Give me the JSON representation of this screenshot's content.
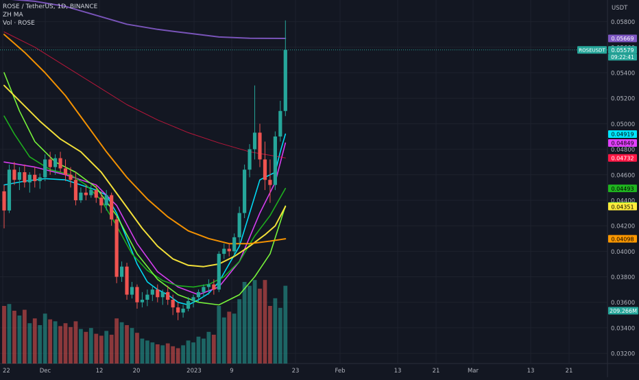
{
  "chart": {
    "title": "ROSE / TetherUS, 1D, BINANCE",
    "indicators": [
      "ZH MA",
      "Vol · ROSE"
    ],
    "price_axis_label": "USDT",
    "symbol_tag": "ROSEUSDT",
    "countdown": "09:22:41",
    "colors": {
      "background": "#131722",
      "grid": "#1e222d",
      "up": "#26a69a",
      "down": "#ef5350"
    }
  },
  "chart_data": {
    "type": "candlestick",
    "x_ticks": [
      "22",
      "Dec",
      "12",
      "20",
      "2023",
      "9",
      "23",
      "Feb",
      "13",
      "21",
      "Mar",
      "13",
      "21"
    ],
    "y_ticks": [
      0.032,
      0.034,
      0.036,
      0.038,
      0.04,
      0.042,
      0.044,
      0.046,
      0.048,
      0.05,
      0.052,
      0.054,
      0.056,
      0.058
    ],
    "ylim": [
      0.0312,
      0.0597
    ],
    "candles": [
      {
        "o": 0.0447,
        "h": 0.0452,
        "l": 0.0418,
        "c": 0.0432
      },
      {
        "o": 0.0432,
        "h": 0.0468,
        "l": 0.043,
        "c": 0.0464
      },
      {
        "o": 0.0464,
        "h": 0.047,
        "l": 0.0452,
        "c": 0.0456
      },
      {
        "o": 0.0456,
        "h": 0.0466,
        "l": 0.0448,
        "c": 0.0462
      },
      {
        "o": 0.0462,
        "h": 0.0468,
        "l": 0.045,
        "c": 0.0454
      },
      {
        "o": 0.0454,
        "h": 0.0462,
        "l": 0.0446,
        "c": 0.046
      },
      {
        "o": 0.046,
        "h": 0.0466,
        "l": 0.045,
        "c": 0.0455
      },
      {
        "o": 0.0455,
        "h": 0.0461,
        "l": 0.0449,
        "c": 0.0458
      },
      {
        "o": 0.0458,
        "h": 0.0476,
        "l": 0.0455,
        "c": 0.0472
      },
      {
        "o": 0.0472,
        "h": 0.0478,
        "l": 0.046,
        "c": 0.0466
      },
      {
        "o": 0.0466,
        "h": 0.0476,
        "l": 0.046,
        "c": 0.0473
      },
      {
        "o": 0.0473,
        "h": 0.0478,
        "l": 0.0462,
        "c": 0.0465
      },
      {
        "o": 0.0465,
        "h": 0.0472,
        "l": 0.0455,
        "c": 0.046
      },
      {
        "o": 0.046,
        "h": 0.0466,
        "l": 0.045,
        "c": 0.0456
      },
      {
        "o": 0.0456,
        "h": 0.0462,
        "l": 0.0436,
        "c": 0.044
      },
      {
        "o": 0.044,
        "h": 0.045,
        "l": 0.0438,
        "c": 0.0446
      },
      {
        "o": 0.0446,
        "h": 0.0452,
        "l": 0.044,
        "c": 0.0444
      },
      {
        "o": 0.0444,
        "h": 0.0452,
        "l": 0.0442,
        "c": 0.0448
      },
      {
        "o": 0.0448,
        "h": 0.0452,
        "l": 0.0438,
        "c": 0.0442
      },
      {
        "o": 0.0442,
        "h": 0.0447,
        "l": 0.043,
        "c": 0.0436
      },
      {
        "o": 0.0436,
        "h": 0.0448,
        "l": 0.0432,
        "c": 0.0444
      },
      {
        "o": 0.0444,
        "h": 0.0446,
        "l": 0.042,
        "c": 0.0425
      },
      {
        "o": 0.0425,
        "h": 0.0428,
        "l": 0.0375,
        "c": 0.038
      },
      {
        "o": 0.038,
        "h": 0.0392,
        "l": 0.0376,
        "c": 0.0388
      },
      {
        "o": 0.0388,
        "h": 0.0391,
        "l": 0.0362,
        "c": 0.0366
      },
      {
        "o": 0.0366,
        "h": 0.0376,
        "l": 0.0363,
        "c": 0.0372
      },
      {
        "o": 0.0372,
        "h": 0.0374,
        "l": 0.0355,
        "c": 0.036
      },
      {
        "o": 0.036,
        "h": 0.0368,
        "l": 0.0356,
        "c": 0.0362
      },
      {
        "o": 0.0362,
        "h": 0.037,
        "l": 0.0357,
        "c": 0.0366
      },
      {
        "o": 0.0366,
        "h": 0.0373,
        "l": 0.0361,
        "c": 0.037
      },
      {
        "o": 0.037,
        "h": 0.0374,
        "l": 0.036,
        "c": 0.0364
      },
      {
        "o": 0.0364,
        "h": 0.037,
        "l": 0.0358,
        "c": 0.0368
      },
      {
        "o": 0.0368,
        "h": 0.0373,
        "l": 0.0358,
        "c": 0.0362
      },
      {
        "o": 0.0362,
        "h": 0.0366,
        "l": 0.035,
        "c": 0.0356
      },
      {
        "o": 0.0356,
        "h": 0.036,
        "l": 0.0346,
        "c": 0.0352
      },
      {
        "o": 0.0352,
        "h": 0.0358,
        "l": 0.0348,
        "c": 0.0355
      },
      {
        "o": 0.0355,
        "h": 0.0364,
        "l": 0.0353,
        "c": 0.0361
      },
      {
        "o": 0.0361,
        "h": 0.0366,
        "l": 0.0356,
        "c": 0.0364
      },
      {
        "o": 0.0364,
        "h": 0.037,
        "l": 0.036,
        "c": 0.0368
      },
      {
        "o": 0.0368,
        "h": 0.0374,
        "l": 0.0364,
        "c": 0.0372
      },
      {
        "o": 0.0372,
        "h": 0.0378,
        "l": 0.0366,
        "c": 0.0374
      },
      {
        "o": 0.0374,
        "h": 0.0378,
        "l": 0.0366,
        "c": 0.037
      },
      {
        "o": 0.037,
        "h": 0.04,
        "l": 0.0368,
        "c": 0.0398
      },
      {
        "o": 0.0398,
        "h": 0.0406,
        "l": 0.0394,
        "c": 0.0402
      },
      {
        "o": 0.0402,
        "h": 0.0406,
        "l": 0.0396,
        "c": 0.04
      },
      {
        "o": 0.04,
        "h": 0.0414,
        "l": 0.0396,
        "c": 0.0411
      },
      {
        "o": 0.0411,
        "h": 0.0435,
        "l": 0.0406,
        "c": 0.043
      },
      {
        "o": 0.043,
        "h": 0.0468,
        "l": 0.0426,
        "c": 0.0464
      },
      {
        "o": 0.0464,
        "h": 0.0484,
        "l": 0.0458,
        "c": 0.048
      },
      {
        "o": 0.048,
        "h": 0.053,
        "l": 0.0472,
        "c": 0.0493
      },
      {
        "o": 0.0493,
        "h": 0.05,
        "l": 0.0466,
        "c": 0.0472
      },
      {
        "o": 0.0472,
        "h": 0.0486,
        "l": 0.0448,
        "c": 0.0456
      },
      {
        "o": 0.0456,
        "h": 0.0472,
        "l": 0.0438,
        "c": 0.0452
      },
      {
        "o": 0.0452,
        "h": 0.0494,
        "l": 0.0448,
        "c": 0.049
      },
      {
        "o": 0.049,
        "h": 0.0518,
        "l": 0.0486,
        "c": 0.051
      },
      {
        "o": 0.051,
        "h": 0.0581,
        "l": 0.0506,
        "c": 0.05579
      }
    ],
    "volume": [
      0.6,
      0.62,
      0.55,
      0.5,
      0.56,
      0.42,
      0.47,
      0.4,
      0.52,
      0.46,
      0.44,
      0.39,
      0.42,
      0.38,
      0.44,
      0.36,
      0.33,
      0.37,
      0.31,
      0.29,
      0.34,
      0.3,
      0.47,
      0.43,
      0.4,
      0.37,
      0.32,
      0.26,
      0.24,
      0.22,
      0.2,
      0.19,
      0.21,
      0.18,
      0.16,
      0.19,
      0.24,
      0.22,
      0.28,
      0.26,
      0.33,
      0.3,
      0.6,
      0.48,
      0.54,
      0.52,
      0.67,
      0.85,
      0.81,
      0.87,
      0.78,
      0.87,
      0.6,
      0.68,
      0.58,
      0.81
    ],
    "moving_averages": [
      {
        "color": "#7e57c2",
        "current": 0.05669,
        "points": [
          [
            0,
            0.0598
          ],
          [
            6,
            0.0596
          ],
          [
            12,
            0.0592
          ],
          [
            18,
            0.0585
          ],
          [
            24,
            0.0578
          ],
          [
            30,
            0.0574
          ],
          [
            36,
            0.0571
          ],
          [
            42,
            0.0568
          ],
          [
            48,
            0.0567
          ],
          [
            55,
            0.05669
          ]
        ]
      },
      {
        "color": "#00e5ff",
        "current": 0.04919,
        "points": [
          [
            0,
            0.0452
          ],
          [
            4,
            0.0455
          ],
          [
            8,
            0.0457
          ],
          [
            12,
            0.0456
          ],
          [
            15,
            0.0452
          ],
          [
            18,
            0.0448
          ],
          [
            20,
            0.0444
          ],
          [
            22,
            0.043
          ],
          [
            24,
            0.041
          ],
          [
            26,
            0.039
          ],
          [
            28,
            0.0376
          ],
          [
            30,
            0.037
          ],
          [
            32,
            0.0366
          ],
          [
            34,
            0.036
          ],
          [
            36,
            0.0358
          ],
          [
            38,
            0.0362
          ],
          [
            40,
            0.0367
          ],
          [
            42,
            0.0376
          ],
          [
            44,
            0.039
          ],
          [
            46,
            0.0404
          ],
          [
            48,
            0.043
          ],
          [
            50,
            0.0456
          ],
          [
            52,
            0.046
          ],
          [
            53,
            0.0462
          ],
          [
            54,
            0.0478
          ],
          [
            55,
            0.04919
          ]
        ]
      },
      {
        "color": "#e040fb",
        "current": 0.04849,
        "points": [
          [
            0,
            0.047
          ],
          [
            6,
            0.0466
          ],
          [
            12,
            0.046
          ],
          [
            18,
            0.0452
          ],
          [
            22,
            0.0436
          ],
          [
            26,
            0.0406
          ],
          [
            30,
            0.0384
          ],
          [
            34,
            0.0372
          ],
          [
            38,
            0.0366
          ],
          [
            42,
            0.0372
          ],
          [
            46,
            0.0392
          ],
          [
            50,
            0.043
          ],
          [
            53,
            0.0454
          ],
          [
            55,
            0.04849
          ]
        ]
      },
      {
        "color": "#ff1744",
        "current": 0.04732,
        "points": [
          [
            0,
            0.0572
          ],
          [
            6,
            0.056
          ],
          [
            12,
            0.0545
          ],
          [
            18,
            0.053
          ],
          [
            24,
            0.0515
          ],
          [
            30,
            0.0503
          ],
          [
            36,
            0.0493
          ],
          [
            42,
            0.0485
          ],
          [
            48,
            0.0478
          ],
          [
            55,
            0.04732
          ]
        ]
      },
      {
        "color": "#1fb51f",
        "current": 0.04493,
        "points": [
          [
            0,
            0.0506
          ],
          [
            2,
            0.0492
          ],
          [
            5,
            0.0474
          ],
          [
            9,
            0.0464
          ],
          [
            13,
            0.046
          ],
          [
            16,
            0.0452
          ],
          [
            19,
            0.044
          ],
          [
            22,
            0.042
          ],
          [
            25,
            0.0398
          ],
          [
            28,
            0.0385
          ],
          [
            31,
            0.0377
          ],
          [
            34,
            0.0373
          ],
          [
            37,
            0.0372
          ],
          [
            40,
            0.0374
          ],
          [
            43,
            0.038
          ],
          [
            46,
            0.0392
          ],
          [
            49,
            0.0412
          ],
          [
            52,
            0.0428
          ],
          [
            55,
            0.04493
          ]
        ]
      },
      {
        "color": "#7cff3c",
        "current": 0.04355,
        "points": [
          [
            0,
            0.054
          ],
          [
            3,
            0.051
          ],
          [
            6,
            0.0486
          ],
          [
            10,
            0.047
          ],
          [
            14,
            0.0462
          ],
          [
            18,
            0.045
          ],
          [
            22,
            0.0428
          ],
          [
            26,
            0.0398
          ],
          [
            30,
            0.0378
          ],
          [
            34,
            0.0366
          ],
          [
            38,
            0.036
          ],
          [
            42,
            0.0358
          ],
          [
            46,
            0.0366
          ],
          [
            49,
            0.038
          ],
          [
            52,
            0.0398
          ],
          [
            55,
            0.04355
          ]
        ]
      },
      {
        "color": "#ffeb3b",
        "current": 0.04351,
        "points": [
          [
            0,
            0.053
          ],
          [
            3,
            0.0518
          ],
          [
            7,
            0.0502
          ],
          [
            11,
            0.0488
          ],
          [
            15,
            0.0478
          ],
          [
            19,
            0.0462
          ],
          [
            23,
            0.044
          ],
          [
            27,
            0.0418
          ],
          [
            30,
            0.0404
          ],
          [
            33,
            0.0394
          ],
          [
            36,
            0.0389
          ],
          [
            39,
            0.0388
          ],
          [
            42,
            0.039
          ],
          [
            45,
            0.0396
          ],
          [
            48,
            0.0404
          ],
          [
            51,
            0.0413
          ],
          [
            53,
            0.042
          ],
          [
            55,
            0.04351
          ]
        ]
      },
      {
        "color": "#ff9800",
        "current": 0.04098,
        "points": [
          [
            0,
            0.057
          ],
          [
            4,
            0.0556
          ],
          [
            8,
            0.054
          ],
          [
            12,
            0.0522
          ],
          [
            16,
            0.05
          ],
          [
            20,
            0.0478
          ],
          [
            24,
            0.0458
          ],
          [
            28,
            0.0441
          ],
          [
            32,
            0.0427
          ],
          [
            36,
            0.0416
          ],
          [
            40,
            0.041
          ],
          [
            44,
            0.0406
          ],
          [
            48,
            0.0406
          ],
          [
            52,
            0.0408
          ],
          [
            55,
            0.04098
          ]
        ]
      }
    ],
    "price_labels": [
      {
        "text": "0.05669",
        "value": 0.05669,
        "bg": "#7e57c2",
        "fg": "#ffffff"
      },
      {
        "text": "0.05579",
        "value": 0.05579,
        "bg": "#26a69a",
        "fg": "#ffffff"
      },
      {
        "text": "0.04919",
        "value": 0.04919,
        "bg": "#00e5ff",
        "fg": "#000000"
      },
      {
        "text": "0.04849",
        "value": 0.04849,
        "bg": "#e040fb",
        "fg": "#000000"
      },
      {
        "text": "0.04732",
        "value": 0.04732,
        "bg": "#ff1744",
        "fg": "#ffffff"
      },
      {
        "text": "0.04493",
        "value": 0.04493,
        "bg": "#1fb51f",
        "fg": "#000000"
      },
      {
        "text": "0.04355",
        "value": 0.04355,
        "bg": "#7cff3c",
        "fg": "#000000"
      },
      {
        "text": "0.04351",
        "value": 0.04351,
        "bg": "#ffeb3b",
        "fg": "#000000"
      },
      {
        "text": "0.04098",
        "value": 0.04098,
        "bg": "#ff9800",
        "fg": "#000000"
      }
    ],
    "volume_label": {
      "text": "209.266M",
      "bg": "#26a69a",
      "fg": "#ffffff",
      "volume_value": 0.55
    }
  }
}
